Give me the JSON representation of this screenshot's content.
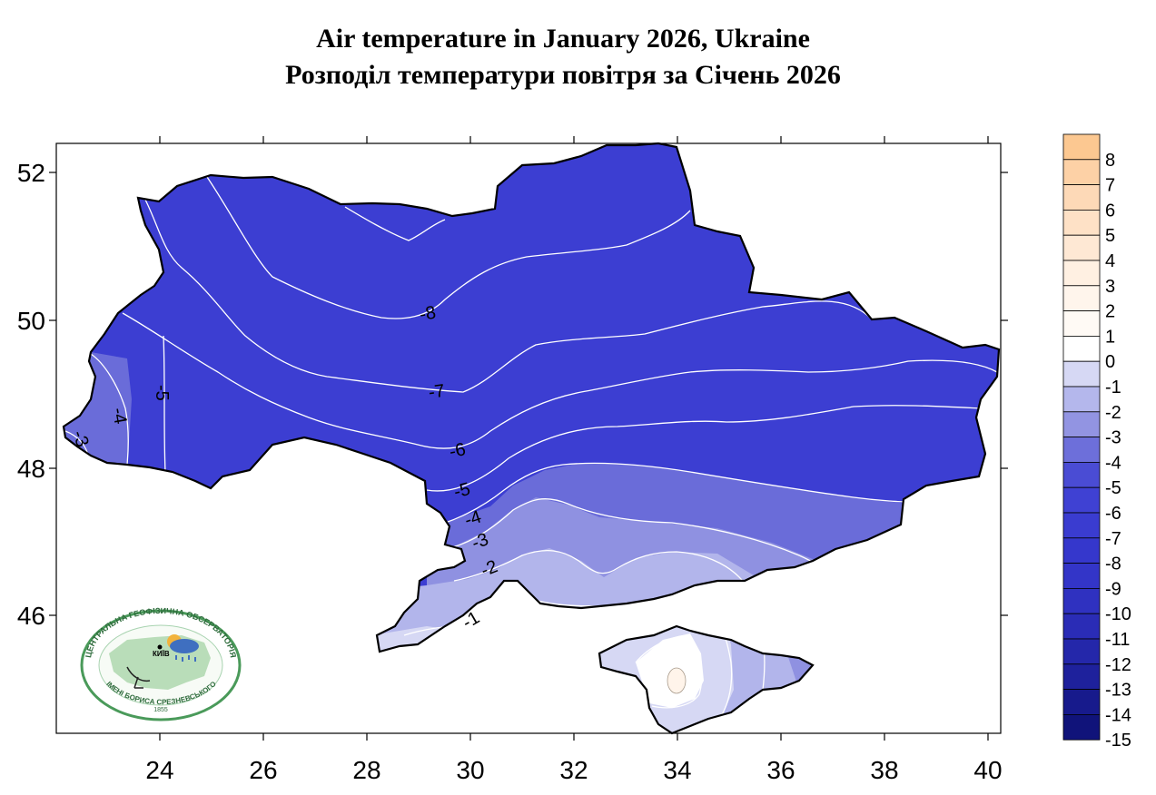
{
  "title_en": "Air temperature in January 2026, Ukraine",
  "title_ua": "Розподіл температури повітря за Січень 2026",
  "x_axis_ticks": [
    "24",
    "26",
    "28",
    "30",
    "32",
    "34",
    "36",
    "38",
    "40"
  ],
  "y_axis_ticks": [
    "52",
    "50",
    "48",
    "46"
  ],
  "contour_labels": [
    "-8",
    "-7",
    "-6",
    "-5",
    "-4",
    "-3",
    "-2",
    "-1",
    "-5",
    "-4",
    "-3"
  ],
  "legend": {
    "labels": [
      "8",
      "7",
      "6",
      "5",
      "4",
      "3",
      "2",
      "1",
      "0",
      "-1",
      "-2",
      "-3",
      "-4",
      "-5",
      "-6",
      "-7",
      "-8",
      "-9",
      "-10",
      "-11",
      "-12",
      "-13",
      "-14",
      "-15"
    ],
    "colors": [
      "#fcc891",
      "#fdd1a6",
      "#fdd9b7",
      "#fee1c6",
      "#fee8d4",
      "#fff0e2",
      "#fff5ec",
      "#fffaf5",
      "#ffffff",
      "#d6d8f4",
      "#b4b7ec",
      "#9294e2",
      "#6d6fda",
      "#4a4cd4",
      "#3f41d3",
      "#3a3cd0",
      "#3537cc",
      "#3335c8",
      "#2f31c0",
      "#2a2cb6",
      "#2427aa",
      "#1e219c",
      "#171a8c",
      "#10137a"
    ]
  },
  "logo": {
    "top_text": "ЦЕНТРАЛЬНА ГЕОФІЗИЧНА ОБСЕРВАТОРІЯ",
    "bottom_text": "ІМЕНІ БОРИСА СРЕЗНЕВСЬКОГО",
    "city": "КИЇВ",
    "year": "1855"
  },
  "chart_data": {
    "type": "heatmap",
    "title": "Air temperature in January 2026, Ukraine",
    "subtitle": "Розподіл температури повітря за Січень 2026",
    "xlabel": "",
    "ylabel": "",
    "x_ticks": [
      24,
      26,
      28,
      30,
      32,
      34,
      36,
      38,
      40
    ],
    "y_ticks": [
      52,
      50,
      48,
      46
    ],
    "xlim": [
      22,
      40.2
    ],
    "ylim": [
      44.2,
      52.4
    ],
    "contour_levels": [
      -8,
      -7,
      -6,
      -5,
      -4,
      -3,
      -2,
      -1,
      0
    ],
    "colorbar_range": [
      -15,
      8
    ]
  }
}
